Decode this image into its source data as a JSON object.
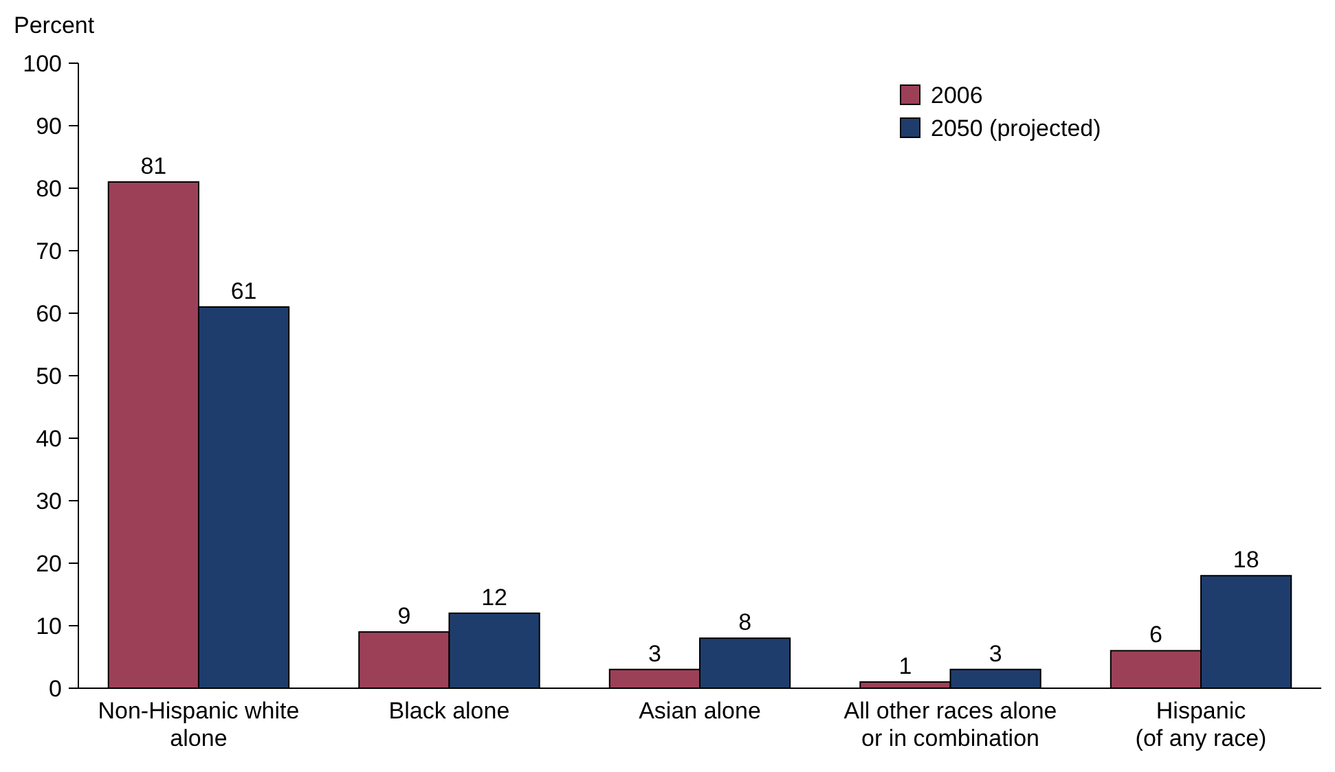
{
  "chart_data": {
    "type": "bar",
    "ylabel": "Percent",
    "categories": [
      "Non-Hispanic white alone",
      "Black alone",
      "Asian alone",
      "All other races alone or in combination",
      "Hispanic (of any race)"
    ],
    "series": [
      {
        "name": "2006",
        "color": "#9c4058",
        "values": [
          81,
          9,
          3,
          1,
          6
        ]
      },
      {
        "name": "2050 (projected)",
        "color": "#1f3d6c",
        "values": [
          61,
          12,
          8,
          3,
          18
        ]
      }
    ],
    "ylim": [
      0,
      100
    ],
    "yticks": [
      0,
      10,
      20,
      30,
      40,
      50,
      60,
      70,
      80,
      90,
      100
    ],
    "data_labels": true,
    "legend": "top right",
    "grid": false
  }
}
